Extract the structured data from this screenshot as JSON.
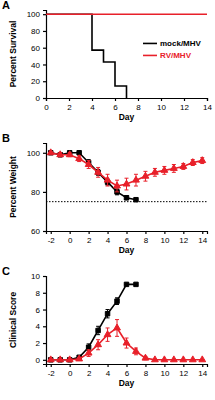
{
  "chart_data": [
    {
      "type": "step",
      "title": "A",
      "x_label": "Day",
      "y_label": "Percent Survival",
      "xlim": [
        0,
        14
      ],
      "xticks": [
        0,
        2,
        4,
        6,
        8,
        10,
        12,
        14
      ],
      "ylim": [
        0,
        105
      ],
      "yticks": [
        0,
        20,
        40,
        60,
        80,
        100
      ],
      "legend": "right",
      "series": [
        {
          "name": "mock/MHV",
          "color": "#000000",
          "x": [
            0,
            4,
            5,
            6,
            7
          ],
          "values": [
            100,
            57.1,
            42.9,
            14.3,
            0
          ]
        },
        {
          "name": "RV/MHV",
          "color": "#e8202a",
          "x": [
            0,
            14
          ],
          "values": [
            100,
            100
          ]
        }
      ]
    },
    {
      "type": "line",
      "title": "B",
      "x_label": "Day",
      "y_label": "Percent Weight",
      "xlim": [
        -2.5,
        14.5
      ],
      "xticks": [
        -2,
        0,
        2,
        4,
        6,
        8,
        10,
        12,
        14
      ],
      "ylim": [
        60,
        105
      ],
      "yticks": [
        60,
        80,
        100
      ],
      "reference_line": 75,
      "x": [
        -2,
        -1,
        0,
        1,
        2,
        3,
        4,
        5,
        6,
        7,
        8,
        9,
        10,
        11,
        12,
        13,
        14
      ],
      "series": [
        {
          "color": "#000000",
          "marker": "square",
          "values": [
            100,
            99,
            100,
            100,
            95,
            90,
            85,
            80,
            77,
            76,
            null,
            null,
            null,
            null,
            null,
            null,
            null
          ],
          "errors": [
            0,
            1,
            0.5,
            1,
            1.5,
            1.5,
            1.5,
            1.5,
            1,
            0.5,
            null,
            null,
            null,
            null,
            null,
            null,
            null
          ]
        },
        {
          "color": "#e8202a",
          "marker": "triangle",
          "values": [
            100,
            99,
            99,
            97,
            94,
            90,
            86,
            83,
            84,
            86,
            88,
            90,
            91,
            92,
            93,
            95,
            96
          ],
          "errors": [
            0,
            1,
            1,
            1.5,
            2,
            2.5,
            3,
            3,
            3,
            3,
            2.5,
            2,
            2,
            2,
            1.5,
            1.5,
            1.5
          ]
        }
      ]
    },
    {
      "type": "line",
      "title": "C",
      "x_label": "Day",
      "y_label": "Clinical Score",
      "xlim": [
        -2.5,
        14.5
      ],
      "xticks": [
        -2,
        0,
        2,
        4,
        6,
        8,
        10,
        12,
        14
      ],
      "ylim": [
        -0.5,
        10
      ],
      "yticks": [
        0,
        2,
        4,
        6,
        8,
        10
      ],
      "x": [
        -2,
        -1,
        0,
        1,
        2,
        3,
        4,
        5,
        6,
        7,
        8,
        9,
        10,
        11,
        12,
        13,
        14
      ],
      "series": [
        {
          "color": "#000000",
          "marker": "square",
          "values": [
            0,
            0,
            0,
            0.3,
            1.5,
            3.5,
            5.5,
            7,
            9,
            9,
            null,
            null,
            null,
            null,
            null,
            null,
            null
          ],
          "errors": [
            0,
            0,
            0,
            0.2,
            0.4,
            0.5,
            0.5,
            0.4,
            0,
            0,
            null,
            null,
            null,
            null,
            null,
            null,
            null
          ]
        },
        {
          "color": "#e8202a",
          "marker": "triangle",
          "values": [
            0,
            0,
            0,
            0.1,
            0.8,
            1.8,
            3,
            3.8,
            2,
            1,
            0.2,
            0,
            0,
            0,
            0,
            0,
            0
          ],
          "errors": [
            0,
            0,
            0,
            0.1,
            0.4,
            0.6,
            0.8,
            1,
            0.6,
            0.4,
            0.2,
            0,
            0,
            0,
            0,
            0,
            0
          ]
        }
      ]
    }
  ]
}
